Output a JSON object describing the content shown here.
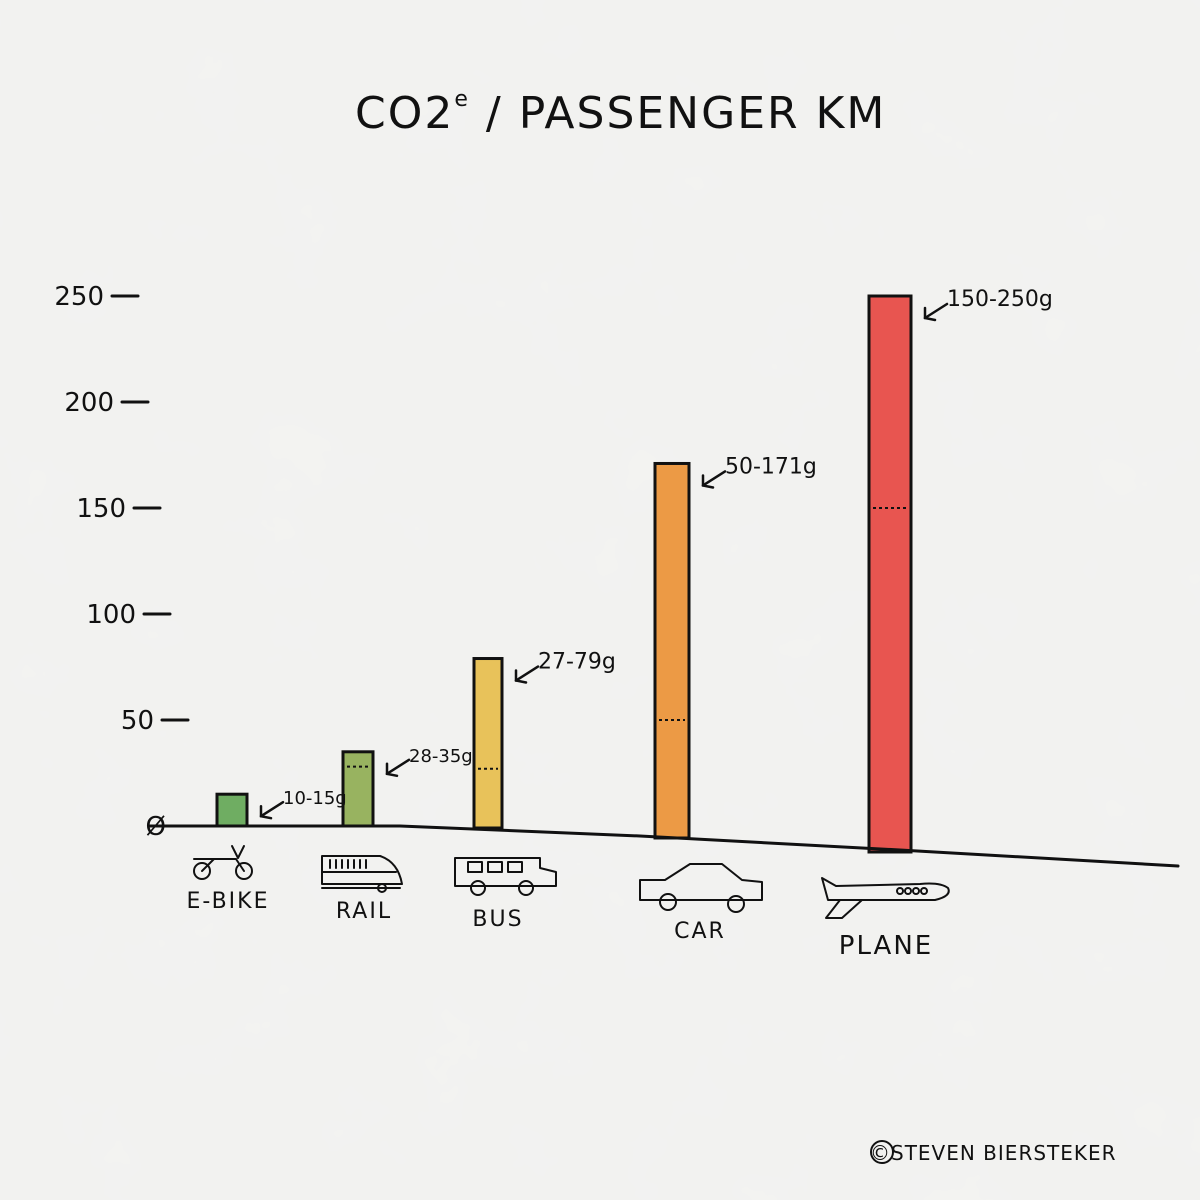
{
  "chart_data": {
    "type": "bar",
    "title_main": "CO2",
    "title_sup": "e",
    "title_rest": " / PASSENGER KM",
    "xlabel": "",
    "ylabel": "",
    "ylim": [
      0,
      250
    ],
    "yticks": [
      {
        "value": 0,
        "label": "Ø"
      },
      {
        "value": 50,
        "label": "50"
      },
      {
        "value": 100,
        "label": "100"
      },
      {
        "value": 150,
        "label": "150"
      },
      {
        "value": 200,
        "label": "200"
      },
      {
        "value": 250,
        "label": "250"
      }
    ],
    "categories": [
      "E-BIKE",
      "RAIL",
      "BUS",
      "CAR",
      "PLANE"
    ],
    "ranges": [
      {
        "low": 10,
        "high": 15,
        "label": "10-15g"
      },
      {
        "low": 28,
        "high": 35,
        "label": "28-35g"
      },
      {
        "low": 27,
        "high": 79,
        "label": "27-79g"
      },
      {
        "low": 50,
        "high": 171,
        "label": "50-171g"
      },
      {
        "low": 150,
        "high": 250,
        "label": "150-250g"
      }
    ],
    "colors": [
      "#6fad62",
      "#98b360",
      "#e8c25a",
      "#ec9a45",
      "#e85550"
    ],
    "icons": [
      "e-bike-icon",
      "rail-icon",
      "bus-icon",
      "car-icon",
      "plane-icon"
    ],
    "grid": false,
    "legend": "none"
  },
  "credit": "©STEVEN BIERSTEKER"
}
